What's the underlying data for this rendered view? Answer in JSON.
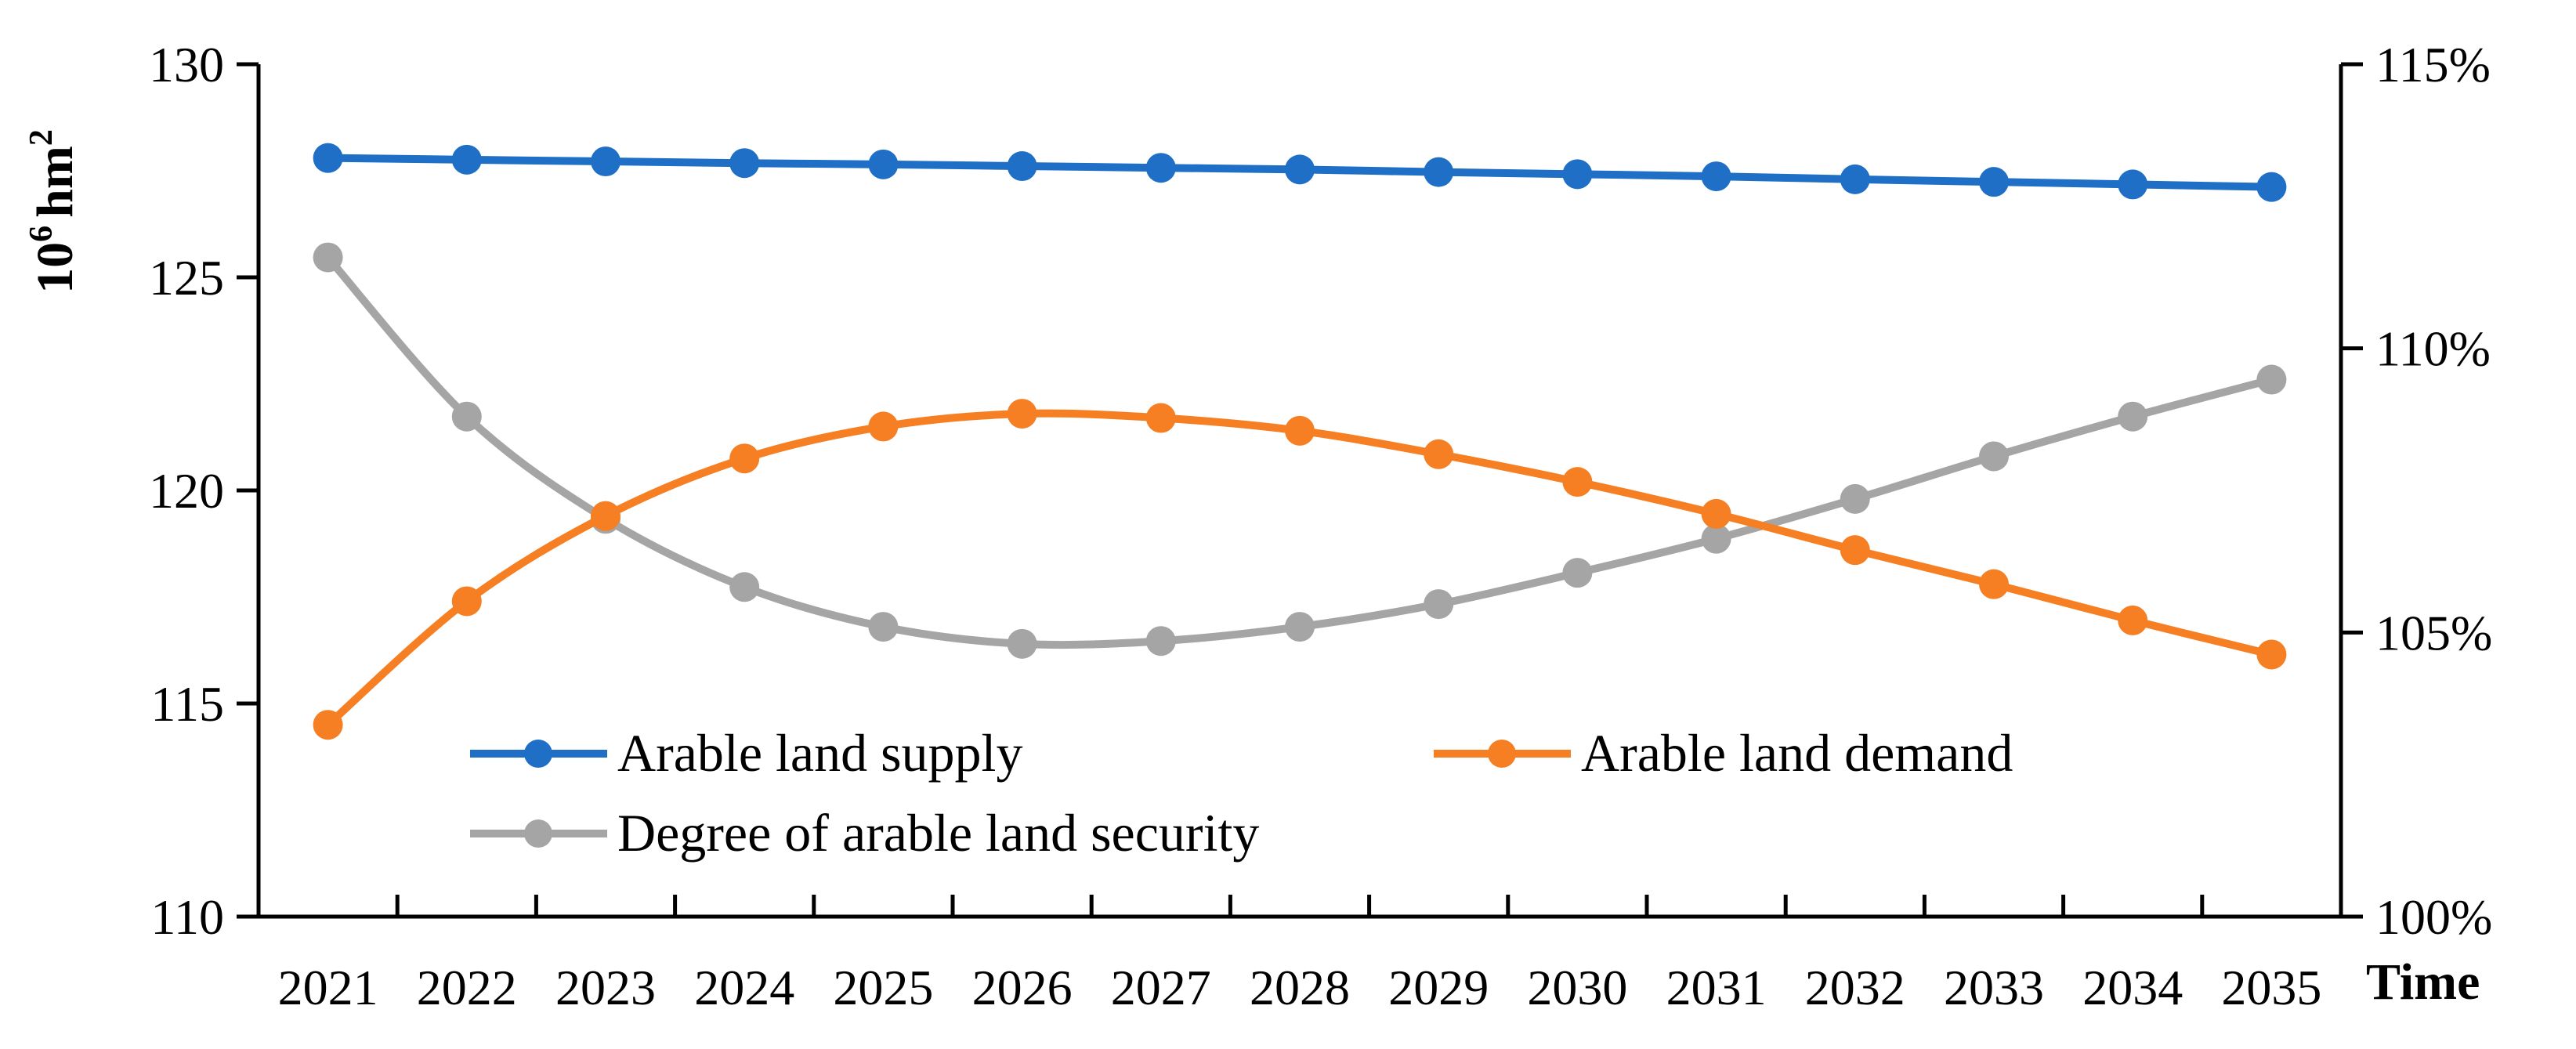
{
  "chart_data": {
    "type": "line",
    "title": "",
    "xlabel": "Time",
    "ylabel_left_base": "10",
    "ylabel_left_exp": "6",
    "ylabel_left_unit": "hm",
    "ylabel_left_unit_exp": "2",
    "categories": [
      "2021",
      "2022",
      "2023",
      "2024",
      "2025",
      "2026",
      "2027",
      "2028",
      "2029",
      "2030",
      "2031",
      "2032",
      "2033",
      "2034",
      "2035"
    ],
    "ylim_left": [
      110,
      130
    ],
    "yticks_left": [
      "110",
      "115",
      "120",
      "125",
      "130"
    ],
    "yticks_left_values": [
      110,
      115,
      120,
      125,
      130
    ],
    "ylim_right": [
      100,
      115
    ],
    "yticks_right": [
      "100%",
      "105%",
      "110%",
      "115%"
    ],
    "yticks_right_values": [
      100,
      105,
      110,
      115
    ],
    "series": [
      {
        "name": "Arable land supply",
        "axis": "left",
        "color": "#1F6FC6",
        "values": [
          127.8,
          127.76,
          127.72,
          127.68,
          127.65,
          127.61,
          127.57,
          127.53,
          127.47,
          127.42,
          127.37,
          127.3,
          127.24,
          127.18,
          127.12
        ]
      },
      {
        "name": "Arable land demand",
        "axis": "left",
        "color": "#F57F22",
        "values": [
          114.5,
          117.4,
          119.4,
          120.75,
          121.5,
          121.8,
          121.7,
          121.4,
          120.85,
          120.2,
          119.45,
          118.6,
          117.8,
          116.95,
          116.15
        ]
      },
      {
        "name": "Degree of arable land security",
        "axis": "right",
        "color": "#A5A5A5",
        "values": [
          111.6,
          108.8,
          107.0,
          105.8,
          105.1,
          104.8,
          104.85,
          105.1,
          105.5,
          106.05,
          106.65,
          107.35,
          108.1,
          108.8,
          109.45
        ]
      }
    ],
    "legend": [
      "Arable land supply",
      "Arable land demand",
      "Degree of arable land security"
    ],
    "legend_position": "lower-center",
    "grid": false
  }
}
